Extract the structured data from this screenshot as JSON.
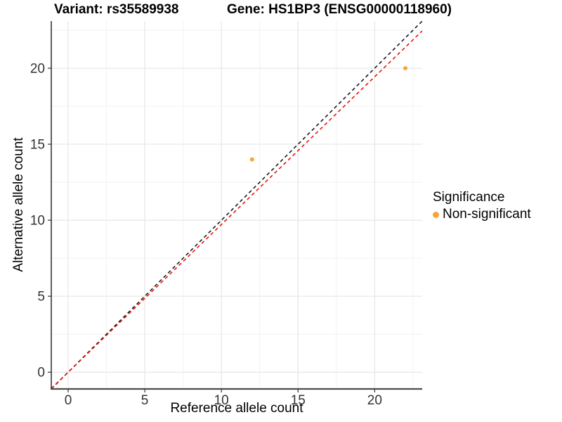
{
  "titles": {
    "variant": "Variant: rs35589938",
    "gene": "Gene: HS1BP3 (ENSG00000118960)"
  },
  "legend": {
    "title": "Significance",
    "items": [
      {
        "label": "Non-significant",
        "color": "#FBA338"
      }
    ]
  },
  "colors": {
    "background": "#FFFFFF",
    "grid_major": "#E6E6E6",
    "grid_minor": "#F2F2F2",
    "y_axis_line": "#1A1A1A",
    "x_axis_line": "#4D4D4D",
    "tick": "#333333",
    "tick_label": "#333333",
    "point": "#FBA338",
    "identity_line": "#1A1A1A",
    "fit_line": "#E8150D"
  },
  "chart_data": {
    "type": "scatter",
    "title_left": "Variant: rs35589938",
    "title_right": "Gene: HS1BP3 (ENSG00000118960)",
    "xlabel": "Reference allele count",
    "ylabel": "Alternative allele count",
    "xlim": [
      -1.1,
      23.1
    ],
    "ylim": [
      -1.1,
      23.1
    ],
    "x_ticks": [
      0,
      5,
      10,
      15,
      20
    ],
    "y_ticks": [
      0,
      5,
      10,
      15,
      20
    ],
    "x_minor_ticks": [
      2.5,
      7.5,
      12.5,
      17.5,
      22.5
    ],
    "y_minor_ticks": [
      2.5,
      7.5,
      12.5,
      17.5,
      22.5
    ],
    "grid": "major+minor",
    "legend_position": "right",
    "legend_title": "Significance",
    "series": [
      {
        "name": "Non-significant",
        "color": "#FBA338",
        "marker": "circle",
        "points": [
          [
            12,
            14
          ],
          [
            22,
            20
          ]
        ]
      }
    ],
    "reference_lines": [
      {
        "name": "identity",
        "slope": 1.0,
        "intercept": 0,
        "color": "#1A1A1A",
        "style": "dashed"
      },
      {
        "name": "expected-ratio",
        "slope": 0.972,
        "intercept": 0,
        "color": "#E8150D",
        "style": "dashed"
      }
    ]
  }
}
